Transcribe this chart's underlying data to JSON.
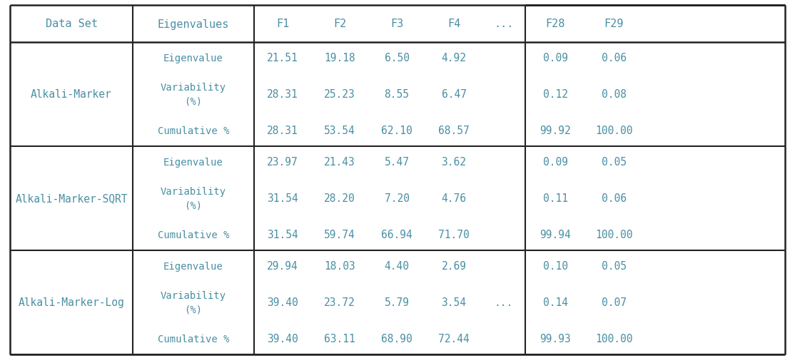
{
  "headers": [
    "Data Set",
    "Eigenvalues",
    "F1",
    "F2",
    "F3",
    "F4",
    "...",
    "F28",
    "F29"
  ],
  "rows": [
    {
      "dataset": "Alkali-Marker",
      "sub_rows": [
        {
          "label": "Eigenvalue",
          "values": [
            "21.51",
            "19.18",
            "6.50",
            "4.92",
            "",
            "0.09",
            "0.06"
          ]
        },
        {
          "label": "Variability\n(%)",
          "values": [
            "28.31",
            "25.23",
            "8.55",
            "6.47",
            "",
            "0.12",
            "0.08"
          ]
        },
        {
          "label": "Cumulative %",
          "values": [
            "28.31",
            "53.54",
            "62.10",
            "68.57",
            "",
            "99.92",
            "100.00"
          ]
        }
      ]
    },
    {
      "dataset": "Alkali-Marker-SQRT",
      "sub_rows": [
        {
          "label": "Eigenvalue",
          "values": [
            "23.97",
            "21.43",
            "5.47",
            "3.62",
            "",
            "0.09",
            "0.05"
          ]
        },
        {
          "label": "Variability\n(%)",
          "values": [
            "31.54",
            "28.20",
            "7.20",
            "4.76",
            "",
            "0.11",
            "0.06"
          ]
        },
        {
          "label": "Cumulative %",
          "values": [
            "31.54",
            "59.74",
            "66.94",
            "71.70",
            "",
            "99.94",
            "100.00"
          ]
        }
      ]
    },
    {
      "dataset": "Alkali-Marker-Log",
      "sub_rows": [
        {
          "label": "Eigenvalue",
          "values": [
            "29.94",
            "18.03",
            "4.40",
            "2.69",
            "",
            "0.10",
            "0.05"
          ]
        },
        {
          "label": "Variability\n(%)",
          "values": [
            "39.40",
            "23.72",
            "5.79",
            "3.54",
            "...",
            "0.14",
            "0.07"
          ]
        },
        {
          "label": "Cumulative %",
          "values": [
            "39.40",
            "63.11",
            "68.90",
            "72.44",
            "",
            "99.93",
            "100.00"
          ]
        }
      ]
    }
  ],
  "text_color": "#4a8fa3",
  "line_color": "#222222",
  "bg_color": "#ffffff",
  "font_size": 11,
  "font_family": "monospace"
}
